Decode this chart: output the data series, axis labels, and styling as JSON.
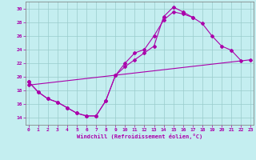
{
  "xlabel": "Windchill (Refroidissement éolien,°C)",
  "bg_color": "#c4eef0",
  "grid_color": "#99cccc",
  "line_color": "#aa00aa",
  "xlim_min": -0.3,
  "xlim_max": 23.3,
  "ylim_min": 13.0,
  "ylim_max": 31.0,
  "xticks": [
    0,
    1,
    2,
    3,
    4,
    5,
    6,
    7,
    8,
    9,
    10,
    11,
    12,
    13,
    14,
    15,
    16,
    17,
    18,
    19,
    20,
    21,
    22,
    23
  ],
  "yticks": [
    14,
    16,
    18,
    20,
    22,
    24,
    26,
    28,
    30
  ],
  "curve1_x": [
    0,
    1,
    2,
    3,
    4,
    5,
    6,
    7,
    8,
    9,
    10,
    11,
    12,
    13,
    14,
    15,
    16,
    17,
    18,
    19,
    20,
    21,
    22
  ],
  "curve1_y": [
    19.3,
    17.8,
    16.8,
    16.3,
    15.5,
    14.7,
    14.3,
    14.3,
    16.5,
    20.2,
    22.0,
    23.5,
    24.0,
    26.0,
    28.3,
    29.5,
    29.2,
    28.7,
    27.8,
    26.0,
    24.5,
    23.9,
    22.4
  ],
  "curve2_x": [
    0,
    1,
    2,
    3,
    4,
    5,
    6,
    7,
    8,
    9,
    10,
    11,
    12,
    13,
    14,
    15,
    16,
    17
  ],
  "curve2_y": [
    19.3,
    17.8,
    16.8,
    16.3,
    15.5,
    14.7,
    14.3,
    14.3,
    16.5,
    20.2,
    21.5,
    22.5,
    23.5,
    24.5,
    28.8,
    30.2,
    29.5,
    28.7
  ],
  "curve3_x": [
    0,
    23
  ],
  "curve3_y": [
    18.8,
    22.5
  ],
  "marker_style": "D",
  "marker_size": 2.0,
  "line_width": 0.8
}
